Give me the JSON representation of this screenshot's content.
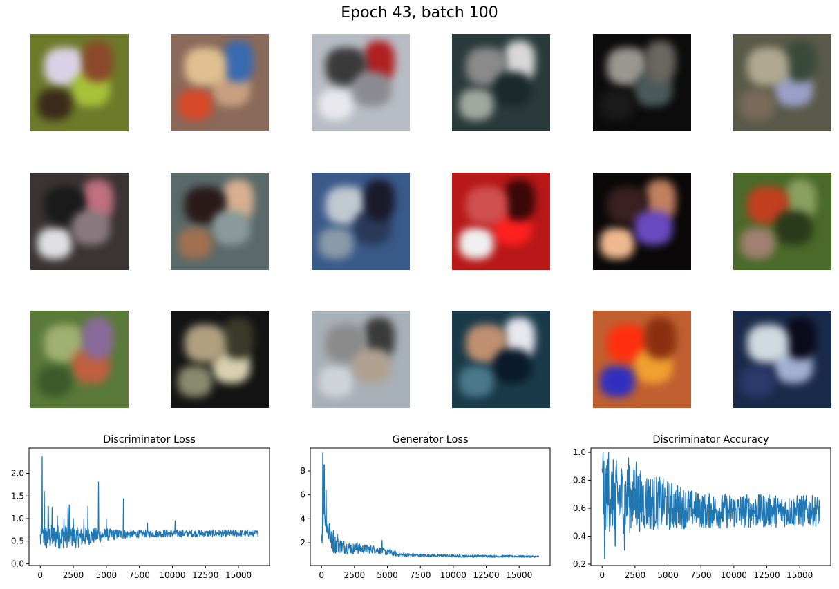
{
  "figure": {
    "title": "Epoch 43, batch 100"
  },
  "generated_samples": {
    "rows": 3,
    "cols": 6,
    "tiles": [
      {
        "bg": "#6d7a2a",
        "blobs": [
          "#d9d2e6",
          "#a9c13a",
          "#3a2a1a",
          "#8a4a2a"
        ]
      },
      {
        "bg": "#8a6a5a",
        "blobs": [
          "#c8a080",
          "#d94a2a",
          "#3a6ab0",
          "#e0c090"
        ]
      },
      {
        "bg": "#b8bcc4",
        "blobs": [
          "#e8e8ec",
          "#b02020",
          "#3a3a3a",
          "#8a8a90"
        ]
      },
      {
        "bg": "#2a3a3a",
        "blobs": [
          "#d8d8d8",
          "#8a8a8a",
          "#1a2a2a",
          "#a0a8a0"
        ]
      },
      {
        "bg": "#0c0c0c",
        "blobs": [
          "#9a9690",
          "#4a5a5a",
          "#1a1a1a",
          "#6a6660"
        ]
      },
      {
        "bg": "#5a5a4a",
        "blobs": [
          "#9aa0c8",
          "#7a6a5a",
          "#3a4a3a",
          "#b0a890"
        ]
      },
      {
        "bg": "#3a3434",
        "blobs": [
          "#e0e0e4",
          "#c07080",
          "#1a1a1a",
          "#8a7a80"
        ]
      },
      {
        "bg": "#5a6a6a",
        "blobs": [
          "#d8b090",
          "#2a1a1a",
          "#8a9a9a",
          "#a07050"
        ]
      },
      {
        "bg": "#3a5a8a",
        "blobs": [
          "#c0c8d0",
          "#2a3a5a",
          "#8a9aa8",
          "#1a1a2a"
        ]
      },
      {
        "bg": "#b81818",
        "blobs": [
          "#ff2020",
          "#f0f0f0",
          "#3a0808",
          "#d05050"
        ]
      },
      {
        "bg": "#0a0808",
        "blobs": [
          "#f0b890",
          "#c08060",
          "#3a2020",
          "#6a4ac0"
        ]
      },
      {
        "bg": "#4a6a2a",
        "blobs": [
          "#8aa060",
          "#c04020",
          "#2a3a1a",
          "#a08070"
        ]
      },
      {
        "bg": "#5a7a3a",
        "blobs": [
          "#a0b070",
          "#c06040",
          "#3a5a2a",
          "#8a6a9a"
        ]
      },
      {
        "bg": "#141414",
        "blobs": [
          "#d8d0b0",
          "#8a8a70",
          "#3a3a2a",
          "#b0a080"
        ]
      },
      {
        "bg": "#a8b0b8",
        "blobs": [
          "#d0d4d8",
          "#3a3a3a",
          "#8a8a8a",
          "#b0a090"
        ]
      },
      {
        "bg": "#1a3a4a",
        "blobs": [
          "#e8e8f0",
          "#c09070",
          "#0a1a2a",
          "#4a7a8a"
        ]
      },
      {
        "bg": "#c06030",
        "blobs": [
          "#ff3010",
          "#f0a030",
          "#3030c0",
          "#8a3010"
        ]
      },
      {
        "bg": "#1a2a4a",
        "blobs": [
          "#a0b0d0",
          "#2a3a6a",
          "#0a0a1a",
          "#d0d8e0"
        ]
      }
    ]
  },
  "chart_data": [
    {
      "type": "line",
      "title": "Discriminator Loss",
      "color": "#1f77b4",
      "xlim": [
        -850,
        17350
      ],
      "ylim": [
        -0.04,
        2.56
      ],
      "xticks": [
        "0",
        "2500",
        "5000",
        "7500",
        "10000",
        "12500",
        "15000"
      ],
      "yticks": [
        "0.0",
        "0.5",
        "1.0",
        "1.5",
        "2.0"
      ],
      "n_points": 16500,
      "base": [
        [
          0,
          0.55
        ],
        [
          1000,
          0.6
        ],
        [
          2000,
          0.6
        ],
        [
          3000,
          0.58
        ],
        [
          4000,
          0.62
        ],
        [
          5000,
          0.64
        ],
        [
          6000,
          0.65
        ],
        [
          8000,
          0.66
        ],
        [
          10000,
          0.67
        ],
        [
          12500,
          0.67
        ],
        [
          16500,
          0.67
        ]
      ],
      "noise": [
        [
          0,
          0.3
        ],
        [
          1500,
          0.26
        ],
        [
          3000,
          0.22
        ],
        [
          5000,
          0.14
        ],
        [
          7000,
          0.08
        ],
        [
          16500,
          0.07
        ]
      ],
      "spikes": [
        [
          150,
          2.37
        ],
        [
          300,
          1.6
        ],
        [
          600,
          1.27
        ],
        [
          900,
          1.25
        ],
        [
          1300,
          1.05
        ],
        [
          1800,
          1.0
        ],
        [
          2100,
          1.25
        ],
        [
          2200,
          1.3
        ],
        [
          2500,
          1.0
        ],
        [
          3300,
          0.99
        ],
        [
          3600,
          1.27
        ],
        [
          4400,
          1.81
        ],
        [
          5000,
          0.98
        ],
        [
          6300,
          1.44
        ],
        [
          8100,
          0.9
        ],
        [
          10200,
          0.95
        ]
      ]
    },
    {
      "type": "line",
      "title": "Generator Loss",
      "color": "#1f77b4",
      "xlim": [
        -850,
        17350
      ],
      "ylim": [
        0.1,
        9.9
      ],
      "xticks": [
        "0",
        "2500",
        "5000",
        "7500",
        "10000",
        "12500",
        "15000"
      ],
      "yticks": [
        "2",
        "4",
        "6",
        "8"
      ],
      "n_points": 16500,
      "base": [
        [
          0,
          2.2
        ],
        [
          150,
          5.0
        ],
        [
          400,
          3.4
        ],
        [
          800,
          2.0
        ],
        [
          1500,
          1.7
        ],
        [
          2500,
          1.5
        ],
        [
          4000,
          1.45
        ],
        [
          5000,
          1.2
        ],
        [
          6000,
          1.0
        ],
        [
          8000,
          0.95
        ],
        [
          10000,
          0.9
        ],
        [
          16500,
          0.85
        ]
      ],
      "noise": [
        [
          0,
          1.2
        ],
        [
          500,
          1.0
        ],
        [
          1500,
          0.6
        ],
        [
          3000,
          0.4
        ],
        [
          5000,
          0.25
        ],
        [
          7000,
          0.12
        ],
        [
          16500,
          0.08
        ]
      ],
      "spikes": [
        [
          100,
          9.5
        ],
        [
          200,
          8.5
        ],
        [
          350,
          6.4
        ],
        [
          600,
          3.6
        ],
        [
          900,
          3.0
        ],
        [
          1200,
          2.7
        ],
        [
          2700,
          2.0
        ],
        [
          4600,
          2.2
        ],
        [
          5200,
          1.6
        ]
      ]
    },
    {
      "type": "line",
      "title": "Discriminator Accuracy",
      "color": "#1f77b4",
      "xlim": [
        -850,
        17350
      ],
      "ylim": [
        0.19,
        1.03
      ],
      "xticks": [
        "0",
        "2500",
        "5000",
        "7500",
        "10000",
        "12500",
        "15000"
      ],
      "yticks": [
        "0.2",
        "0.4",
        "0.6",
        "0.8",
        "1.0"
      ],
      "n_points": 16500,
      "base": [
        [
          0,
          0.72
        ],
        [
          1000,
          0.68
        ],
        [
          2500,
          0.66
        ],
        [
          4000,
          0.64
        ],
        [
          5000,
          0.62
        ],
        [
          6500,
          0.6
        ],
        [
          8000,
          0.58
        ],
        [
          10000,
          0.58
        ],
        [
          12500,
          0.58
        ],
        [
          16500,
          0.58
        ]
      ],
      "noise": [
        [
          0,
          0.28
        ],
        [
          1500,
          0.26
        ],
        [
          3000,
          0.22
        ],
        [
          5000,
          0.18
        ],
        [
          7000,
          0.13
        ],
        [
          16500,
          0.11
        ]
      ],
      "spikes": [
        [
          80,
          1.0
        ],
        [
          200,
          0.24
        ],
        [
          500,
          1.0
        ],
        [
          1000,
          0.33
        ],
        [
          1700,
          0.3
        ],
        [
          2000,
          0.96
        ],
        [
          2600,
          0.93
        ]
      ]
    }
  ]
}
